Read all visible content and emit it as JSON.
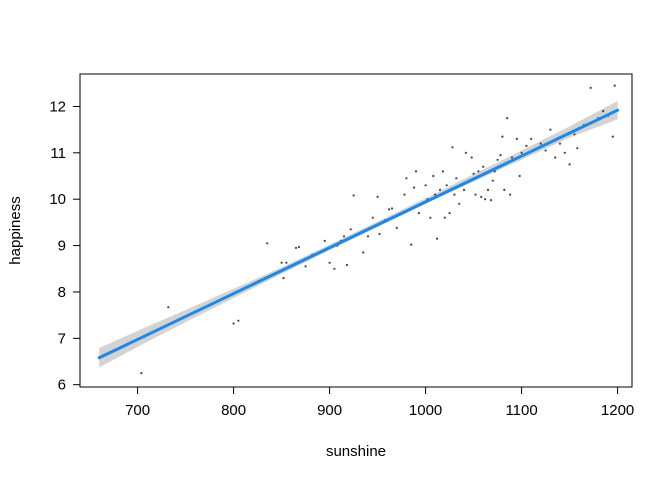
{
  "chart_data": {
    "type": "scatter",
    "title": "",
    "xlabel": "sunshine",
    "ylabel": "happiness",
    "xlim": [
      640,
      1215
    ],
    "ylim": [
      5.95,
      12.7
    ],
    "xticks": [
      700,
      800,
      900,
      1000,
      1100,
      1200
    ],
    "yticks": [
      6,
      7,
      8,
      9,
      10,
      11,
      12
    ],
    "grid": false,
    "colors": {
      "points": "#444444",
      "fit_line": "#1e88e5",
      "confidence_band": "#d3d3d3",
      "axis": "#000000"
    },
    "fit_line": {
      "x": [
        660,
        1200
      ],
      "y": [
        6.58,
        11.92
      ]
    },
    "confidence_band": {
      "x": [
        660,
        700,
        750,
        800,
        850,
        900,
        950,
        1000,
        1050,
        1100,
        1150,
        1200
      ],
      "lower": [
        6.37,
        6.82,
        7.35,
        7.87,
        8.39,
        8.9,
        9.4,
        9.9,
        10.38,
        10.85,
        11.33,
        11.72
      ],
      "upper": [
        6.79,
        7.16,
        7.61,
        8.07,
        8.53,
        9.02,
        9.52,
        10.02,
        10.54,
        11.05,
        11.57,
        12.12
      ]
    },
    "points": [
      [
        704,
        6.25
      ],
      [
        732,
        7.67
      ],
      [
        800,
        7.32
      ],
      [
        805,
        7.38
      ],
      [
        835,
        9.05
      ],
      [
        850,
        8.63
      ],
      [
        852,
        8.3
      ],
      [
        855,
        8.63
      ],
      [
        865,
        8.95
      ],
      [
        868,
        8.97
      ],
      [
        875,
        8.55
      ],
      [
        882,
        8.8
      ],
      [
        895,
        9.1
      ],
      [
        900,
        8.63
      ],
      [
        905,
        8.5
      ],
      [
        908,
        9.0
      ],
      [
        912,
        9.1
      ],
      [
        915,
        9.2
      ],
      [
        918,
        8.58
      ],
      [
        922,
        9.35
      ],
      [
        925,
        10.08
      ],
      [
        930,
        9.25
      ],
      [
        935,
        8.85
      ],
      [
        940,
        9.2
      ],
      [
        945,
        9.6
      ],
      [
        950,
        10.05
      ],
      [
        952,
        9.25
      ],
      [
        958,
        9.55
      ],
      [
        962,
        9.78
      ],
      [
        965,
        9.8
      ],
      [
        970,
        9.38
      ],
      [
        975,
        9.7
      ],
      [
        978,
        10.1
      ],
      [
        980,
        10.45
      ],
      [
        985,
        9.02
      ],
      [
        988,
        10.25
      ],
      [
        990,
        10.6
      ],
      [
        993,
        9.7
      ],
      [
        996,
        9.9
      ],
      [
        1000,
        10.3
      ],
      [
        1002,
        10.0
      ],
      [
        1005,
        9.6
      ],
      [
        1008,
        10.5
      ],
      [
        1010,
        10.1
      ],
      [
        1012,
        9.15
      ],
      [
        1015,
        10.2
      ],
      [
        1018,
        10.6
      ],
      [
        1020,
        9.6
      ],
      [
        1022,
        10.3
      ],
      [
        1025,
        9.7
      ],
      [
        1028,
        11.12
      ],
      [
        1030,
        10.1
      ],
      [
        1032,
        10.45
      ],
      [
        1035,
        9.9
      ],
      [
        1038,
        10.3
      ],
      [
        1040,
        10.2
      ],
      [
        1042,
        11.0
      ],
      [
        1045,
        10.4
      ],
      [
        1048,
        10.9
      ],
      [
        1050,
        10.55
      ],
      [
        1052,
        10.1
      ],
      [
        1055,
        10.6
      ],
      [
        1058,
        10.05
      ],
      [
        1060,
        10.7
      ],
      [
        1062,
        10.0
      ],
      [
        1065,
        10.2
      ],
      [
        1068,
        9.98
      ],
      [
        1070,
        10.4
      ],
      [
        1072,
        10.6
      ],
      [
        1075,
        10.85
      ],
      [
        1078,
        10.95
      ],
      [
        1080,
        11.35
      ],
      [
        1082,
        10.2
      ],
      [
        1085,
        11.75
      ],
      [
        1088,
        10.1
      ],
      [
        1090,
        10.9
      ],
      [
        1095,
        11.3
      ],
      [
        1098,
        10.5
      ],
      [
        1100,
        11.0
      ],
      [
        1105,
        11.15
      ],
      [
        1110,
        11.3
      ],
      [
        1120,
        11.2
      ],
      [
        1125,
        11.05
      ],
      [
        1130,
        11.5
      ],
      [
        1135,
        10.9
      ],
      [
        1140,
        11.2
      ],
      [
        1145,
        11.0
      ],
      [
        1150,
        10.75
      ],
      [
        1155,
        11.4
      ],
      [
        1158,
        11.1
      ],
      [
        1165,
        11.6
      ],
      [
        1172,
        12.4
      ],
      [
        1180,
        11.75
      ],
      [
        1185,
        11.9
      ],
      [
        1190,
        11.8
      ],
      [
        1195,
        11.35
      ],
      [
        1197,
        12.45
      ]
    ]
  }
}
